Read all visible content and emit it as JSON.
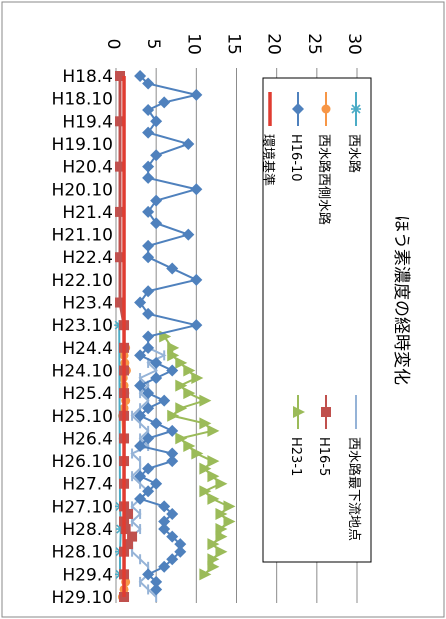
{
  "chart_data": {
    "type": "line",
    "orientation": "rotated-90-clockwise",
    "title": "ほう素濃度の経時変化",
    "ylim": [
      0,
      30
    ],
    "yticks": [
      0,
      5,
      10,
      15,
      20,
      25,
      30
    ],
    "grid": "horizontal",
    "legend_position": "top-right",
    "categories": [
      "H18.4",
      "H18.5",
      "H18.6",
      "H18.7",
      "H18.8",
      "H18.9",
      "H18.10",
      "H18.11",
      "H18.12",
      "H19.1",
      "H19.2",
      "H19.3",
      "H19.4",
      "H19.5",
      "H19.6",
      "H19.7",
      "H19.8",
      "H19.9",
      "H19.10",
      "H19.11",
      "H19.12",
      "H20.1",
      "H20.2",
      "H20.3",
      "H20.4",
      "H20.5",
      "H20.6",
      "H20.7",
      "H20.8",
      "H20.9",
      "H20.10",
      "H20.11",
      "H20.12",
      "H21.1",
      "H21.2",
      "H21.3",
      "H21.4",
      "H21.5",
      "H21.6",
      "H21.7",
      "H21.8",
      "H21.9",
      "H21.10",
      "H21.11",
      "H21.12",
      "H22.1",
      "H22.2",
      "H22.3",
      "H22.4",
      "H22.5",
      "H22.6",
      "H22.7",
      "H22.8",
      "H22.9",
      "H22.10",
      "H22.11",
      "H22.12",
      "H23.1",
      "H23.2",
      "H23.3",
      "H23.4",
      "H23.5",
      "H23.6",
      "H23.7",
      "H23.8",
      "H23.9",
      "H23.10",
      "H23.11",
      "H23.12",
      "H24.1",
      "H24.2",
      "H24.3",
      "H24.4",
      "H24.5",
      "H24.6",
      "H24.7",
      "H24.8",
      "H24.9",
      "H24.10",
      "H24.11",
      "H24.12",
      "H25.1",
      "H25.2",
      "H25.3",
      "H25.4",
      "H25.5",
      "H25.6",
      "H25.7",
      "H25.8",
      "H25.9",
      "H25.10",
      "H25.11",
      "H25.12",
      "H26.1",
      "H26.2",
      "H26.3",
      "H26.4",
      "H26.5",
      "H26.6",
      "H26.7",
      "H26.8",
      "H26.9",
      "H26.10",
      "H26.11",
      "H26.12",
      "H27.1",
      "H27.2",
      "H27.3",
      "H27.4",
      "H27.5",
      "H27.6",
      "H27.7",
      "H27.8",
      "H27.9",
      "H27.10",
      "H27.11",
      "H27.12",
      "H28.1",
      "H28.2",
      "H28.3",
      "H28.4",
      "H28.5",
      "H28.6",
      "H28.7",
      "H28.8",
      "H28.9",
      "H28.10",
      "H28.11",
      "H28.12",
      "H29.1",
      "H29.2",
      "H29.3",
      "H29.4",
      "H29.5",
      "H29.6",
      "H29.7",
      "H29.8",
      "H29.9",
      "H29.10"
    ],
    "tick_labels": [
      "H18.4",
      "H18.10",
      "H19.4",
      "H19.10",
      "H20.4",
      "H20.10",
      "H21.4",
      "H21.10",
      "H22.4",
      "H22.10",
      "H23.4",
      "H23.10",
      "H24.4",
      "H24.10",
      "H25.4",
      "H25.10",
      "H26.4",
      "H26.10",
      "H27.4",
      "H27.10",
      "H28.4",
      "H28.10",
      "H29.4",
      "H29.10"
    ],
    "series": [
      {
        "name": "西水路",
        "color": "#4bacc6",
        "marker": "star",
        "points": [
          [
            "H23.10",
            0.4
          ],
          [
            "H27.10",
            0.5
          ],
          [
            "H28.4",
            0.6
          ],
          [
            "H28.10",
            0.5
          ],
          [
            "H29.4",
            0.5
          ]
        ]
      },
      {
        "name": "西水路西側水路",
        "color": "#f79646",
        "marker": "circle",
        "points": [
          [
            "H24.4",
            1.2
          ],
          [
            "H24.6",
            1.0
          ],
          [
            "H24.8",
            1.1
          ],
          [
            "H24.10",
            1.3
          ],
          [
            "H24.12",
            0.9
          ],
          [
            "H25.2",
            1.0
          ],
          [
            "H25.4",
            1.1
          ],
          [
            "H25.6",
            1.2
          ],
          [
            "H25.8",
            1.0
          ],
          [
            "H25.10",
            0.8
          ],
          [
            "H26.4",
            0.9
          ],
          [
            "H26.10",
            1.0
          ],
          [
            "H29.4",
            1.0
          ],
          [
            "H29.6",
            1.2
          ],
          [
            "H29.8",
            1.0
          ],
          [
            "H29.10",
            0.8
          ]
        ]
      },
      {
        "name": "H16-10",
        "color": "#4f81bd",
        "marker": "diamond",
        "points": [
          [
            "H18.4",
            3
          ],
          [
            "H18.6",
            4
          ],
          [
            "H18.9",
            10
          ],
          [
            "H18.11",
            6
          ],
          [
            "H19.1",
            4
          ],
          [
            "H19.4",
            5
          ],
          [
            "H19.7",
            4
          ],
          [
            "H19.10",
            9
          ],
          [
            "H20.1",
            5
          ],
          [
            "H20.4",
            4
          ],
          [
            "H20.7",
            4
          ],
          [
            "H20.10",
            10
          ],
          [
            "H21.1",
            5
          ],
          [
            "H21.4",
            4
          ],
          [
            "H21.7",
            5
          ],
          [
            "H21.10",
            9
          ],
          [
            "H22.1",
            4
          ],
          [
            "H22.4",
            4
          ],
          [
            "H22.7",
            7
          ],
          [
            "H22.10",
            10
          ],
          [
            "H23.1",
            4
          ],
          [
            "H23.4",
            3
          ],
          [
            "H23.7",
            4
          ],
          [
            "H23.10",
            10
          ],
          [
            "H24.1",
            4
          ],
          [
            "H24.4",
            4
          ],
          [
            "H24.6",
            3
          ],
          [
            "H24.8",
            5
          ],
          [
            "H24.10",
            7
          ],
          [
            "H24.12",
            5
          ],
          [
            "H25.2",
            3
          ],
          [
            "H25.4",
            4
          ],
          [
            "H25.6",
            6
          ],
          [
            "H25.8",
            4
          ],
          [
            "H25.10",
            3
          ],
          [
            "H25.12",
            5
          ],
          [
            "H26.2",
            7
          ],
          [
            "H26.4",
            4
          ],
          [
            "H26.6",
            3
          ],
          [
            "H26.8",
            7
          ],
          [
            "H26.10",
            7
          ],
          [
            "H26.12",
            4
          ],
          [
            "H27.2",
            3
          ],
          [
            "H27.4",
            5
          ],
          [
            "H27.6",
            4
          ],
          [
            "H27.8",
            3
          ],
          [
            "H27.10",
            6
          ],
          [
            "H27.12",
            7
          ],
          [
            "H28.2",
            6
          ],
          [
            "H28.4",
            6
          ],
          [
            "H28.6",
            7
          ],
          [
            "H28.8",
            8
          ],
          [
            "H28.10",
            8
          ],
          [
            "H28.12",
            7
          ],
          [
            "H29.2",
            6
          ],
          [
            "H29.4",
            4
          ],
          [
            "H29.6",
            5
          ],
          [
            "H29.8",
            5
          ]
        ]
      },
      {
        "name": "西水路最下流地点",
        "color": "#95b3d7",
        "marker": "dash",
        "points": [
          [
            "H24.4",
            4
          ],
          [
            "H24.6",
            6
          ],
          [
            "H24.8",
            4
          ],
          [
            "H24.10",
            5
          ],
          [
            "H24.12",
            3
          ],
          [
            "H25.2",
            4
          ],
          [
            "H25.4",
            3
          ],
          [
            "H25.6",
            4
          ],
          [
            "H25.8",
            3
          ],
          [
            "H25.10",
            2
          ],
          [
            "H25.12",
            3
          ],
          [
            "H26.2",
            4
          ],
          [
            "H26.4",
            3
          ],
          [
            "H26.6",
            4
          ],
          [
            "H26.8",
            2
          ],
          [
            "H26.10",
            3
          ],
          [
            "H26.12",
            3
          ],
          [
            "H27.2",
            2
          ],
          [
            "H27.4",
            3
          ],
          [
            "H27.6",
            4
          ],
          [
            "H27.8",
            3
          ],
          [
            "H27.10",
            2
          ],
          [
            "H27.12",
            3
          ],
          [
            "H28.2",
            2
          ],
          [
            "H28.4",
            3
          ],
          [
            "H28.6",
            2
          ],
          [
            "H28.8",
            2
          ],
          [
            "H28.10",
            2
          ],
          [
            "H28.12",
            3
          ],
          [
            "H29.2",
            4
          ],
          [
            "H29.4",
            4
          ],
          [
            "H29.6",
            3
          ],
          [
            "H29.8",
            4
          ],
          [
            "H29.10",
            5
          ]
        ]
      },
      {
        "name": "H16-5",
        "color": "#c0504d",
        "marker": "square",
        "points": [
          [
            "H18.4",
            0.5
          ],
          [
            "H19.4",
            0.5
          ],
          [
            "H20.4",
            0.5
          ],
          [
            "H21.4",
            0.5
          ],
          [
            "H22.4",
            0.5
          ],
          [
            "H23.4",
            0.5
          ],
          [
            "H23.10",
            1
          ],
          [
            "H24.4",
            1
          ],
          [
            "H24.10",
            1
          ],
          [
            "H25.4",
            1
          ],
          [
            "H25.10",
            1
          ],
          [
            "H26.4",
            1
          ],
          [
            "H26.10",
            1
          ],
          [
            "H27.4",
            1
          ],
          [
            "H27.10",
            1
          ],
          [
            "H27.12",
            1.5
          ],
          [
            "H28.2",
            1
          ],
          [
            "H28.4",
            1.2
          ],
          [
            "H28.6",
            2
          ],
          [
            "H28.8",
            1.5
          ],
          [
            "H28.10",
            1
          ],
          [
            "H29.4",
            1
          ],
          [
            "H29.10",
            1
          ]
        ]
      },
      {
        "name": "H23-1",
        "color": "#9bbb59",
        "marker": "triangle",
        "points": [
          [
            "H24.1",
            6
          ],
          [
            "H24.4",
            7
          ],
          [
            "H24.6",
            7
          ],
          [
            "H24.8",
            8
          ],
          [
            "H24.10",
            9
          ],
          [
            "H24.12",
            10
          ],
          [
            "H25.2",
            8
          ],
          [
            "H25.4",
            9
          ],
          [
            "H25.6",
            11
          ],
          [
            "H25.8",
            8
          ],
          [
            "H25.10",
            7
          ],
          [
            "H25.12",
            11
          ],
          [
            "H26.2",
            12
          ],
          [
            "H26.4",
            8
          ],
          [
            "H26.6",
            9
          ],
          [
            "H26.8",
            10
          ],
          [
            "H26.10",
            12
          ],
          [
            "H26.12",
            11
          ],
          [
            "H27.2",
            12
          ],
          [
            "H27.4",
            13
          ],
          [
            "H27.6",
            11
          ],
          [
            "H27.8",
            12
          ],
          [
            "H27.10",
            14
          ],
          [
            "H27.12",
            13
          ],
          [
            "H28.2",
            14
          ],
          [
            "H28.4",
            13
          ],
          [
            "H28.6",
            13
          ],
          [
            "H28.8",
            12
          ],
          [
            "H28.10",
            13
          ],
          [
            "H28.12",
            12
          ],
          [
            "H29.2",
            12
          ],
          [
            "H29.4",
            11
          ]
        ]
      },
      {
        "name": "環境基準",
        "color": "#e03c31",
        "marker": "none",
        "points": [
          [
            "H18.4",
            1
          ],
          [
            "H29.10",
            1
          ]
        ]
      }
    ]
  }
}
